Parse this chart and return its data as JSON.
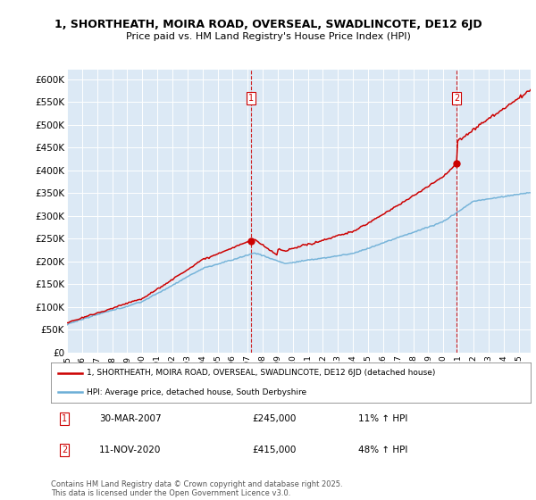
{
  "title1": "1, SHORTHEATH, MOIRA ROAD, OVERSEAL, SWADLINCOTE, DE12 6JD",
  "title2": "Price paid vs. HM Land Registry's House Price Index (HPI)",
  "ylabel_ticks": [
    "£0",
    "£50K",
    "£100K",
    "£150K",
    "£200K",
    "£250K",
    "£300K",
    "£350K",
    "£400K",
    "£450K",
    "£500K",
    "£550K",
    "£600K"
  ],
  "ytick_values": [
    0,
    50000,
    100000,
    150000,
    200000,
    250000,
    300000,
    350000,
    400000,
    450000,
    500000,
    550000,
    600000
  ],
  "xlim_start": 1995.0,
  "xlim_end": 2025.8,
  "ylim": [
    0,
    620000
  ],
  "plot_bg": "#dce9f5",
  "hpi_color": "#6baed6",
  "price_color": "#cc0000",
  "sale1_x": 2007.24,
  "sale1_y": 245000,
  "sale2_x": 2020.87,
  "sale2_y": 415000,
  "legend_line1": "1, SHORTHEATH, MOIRA ROAD, OVERSEAL, SWADLINCOTE, DE12 6JD (detached house)",
  "legend_line2": "HPI: Average price, detached house, South Derbyshire",
  "ann1_label": "1",
  "ann1_date": "30-MAR-2007",
  "ann1_price": "£245,000",
  "ann1_hpi": "11% ↑ HPI",
  "ann2_label": "2",
  "ann2_date": "11-NOV-2020",
  "ann2_price": "£415,000",
  "ann2_hpi": "48% ↑ HPI",
  "footer": "Contains HM Land Registry data © Crown copyright and database right 2025.\nThis data is licensed under the Open Government Licence v3.0."
}
